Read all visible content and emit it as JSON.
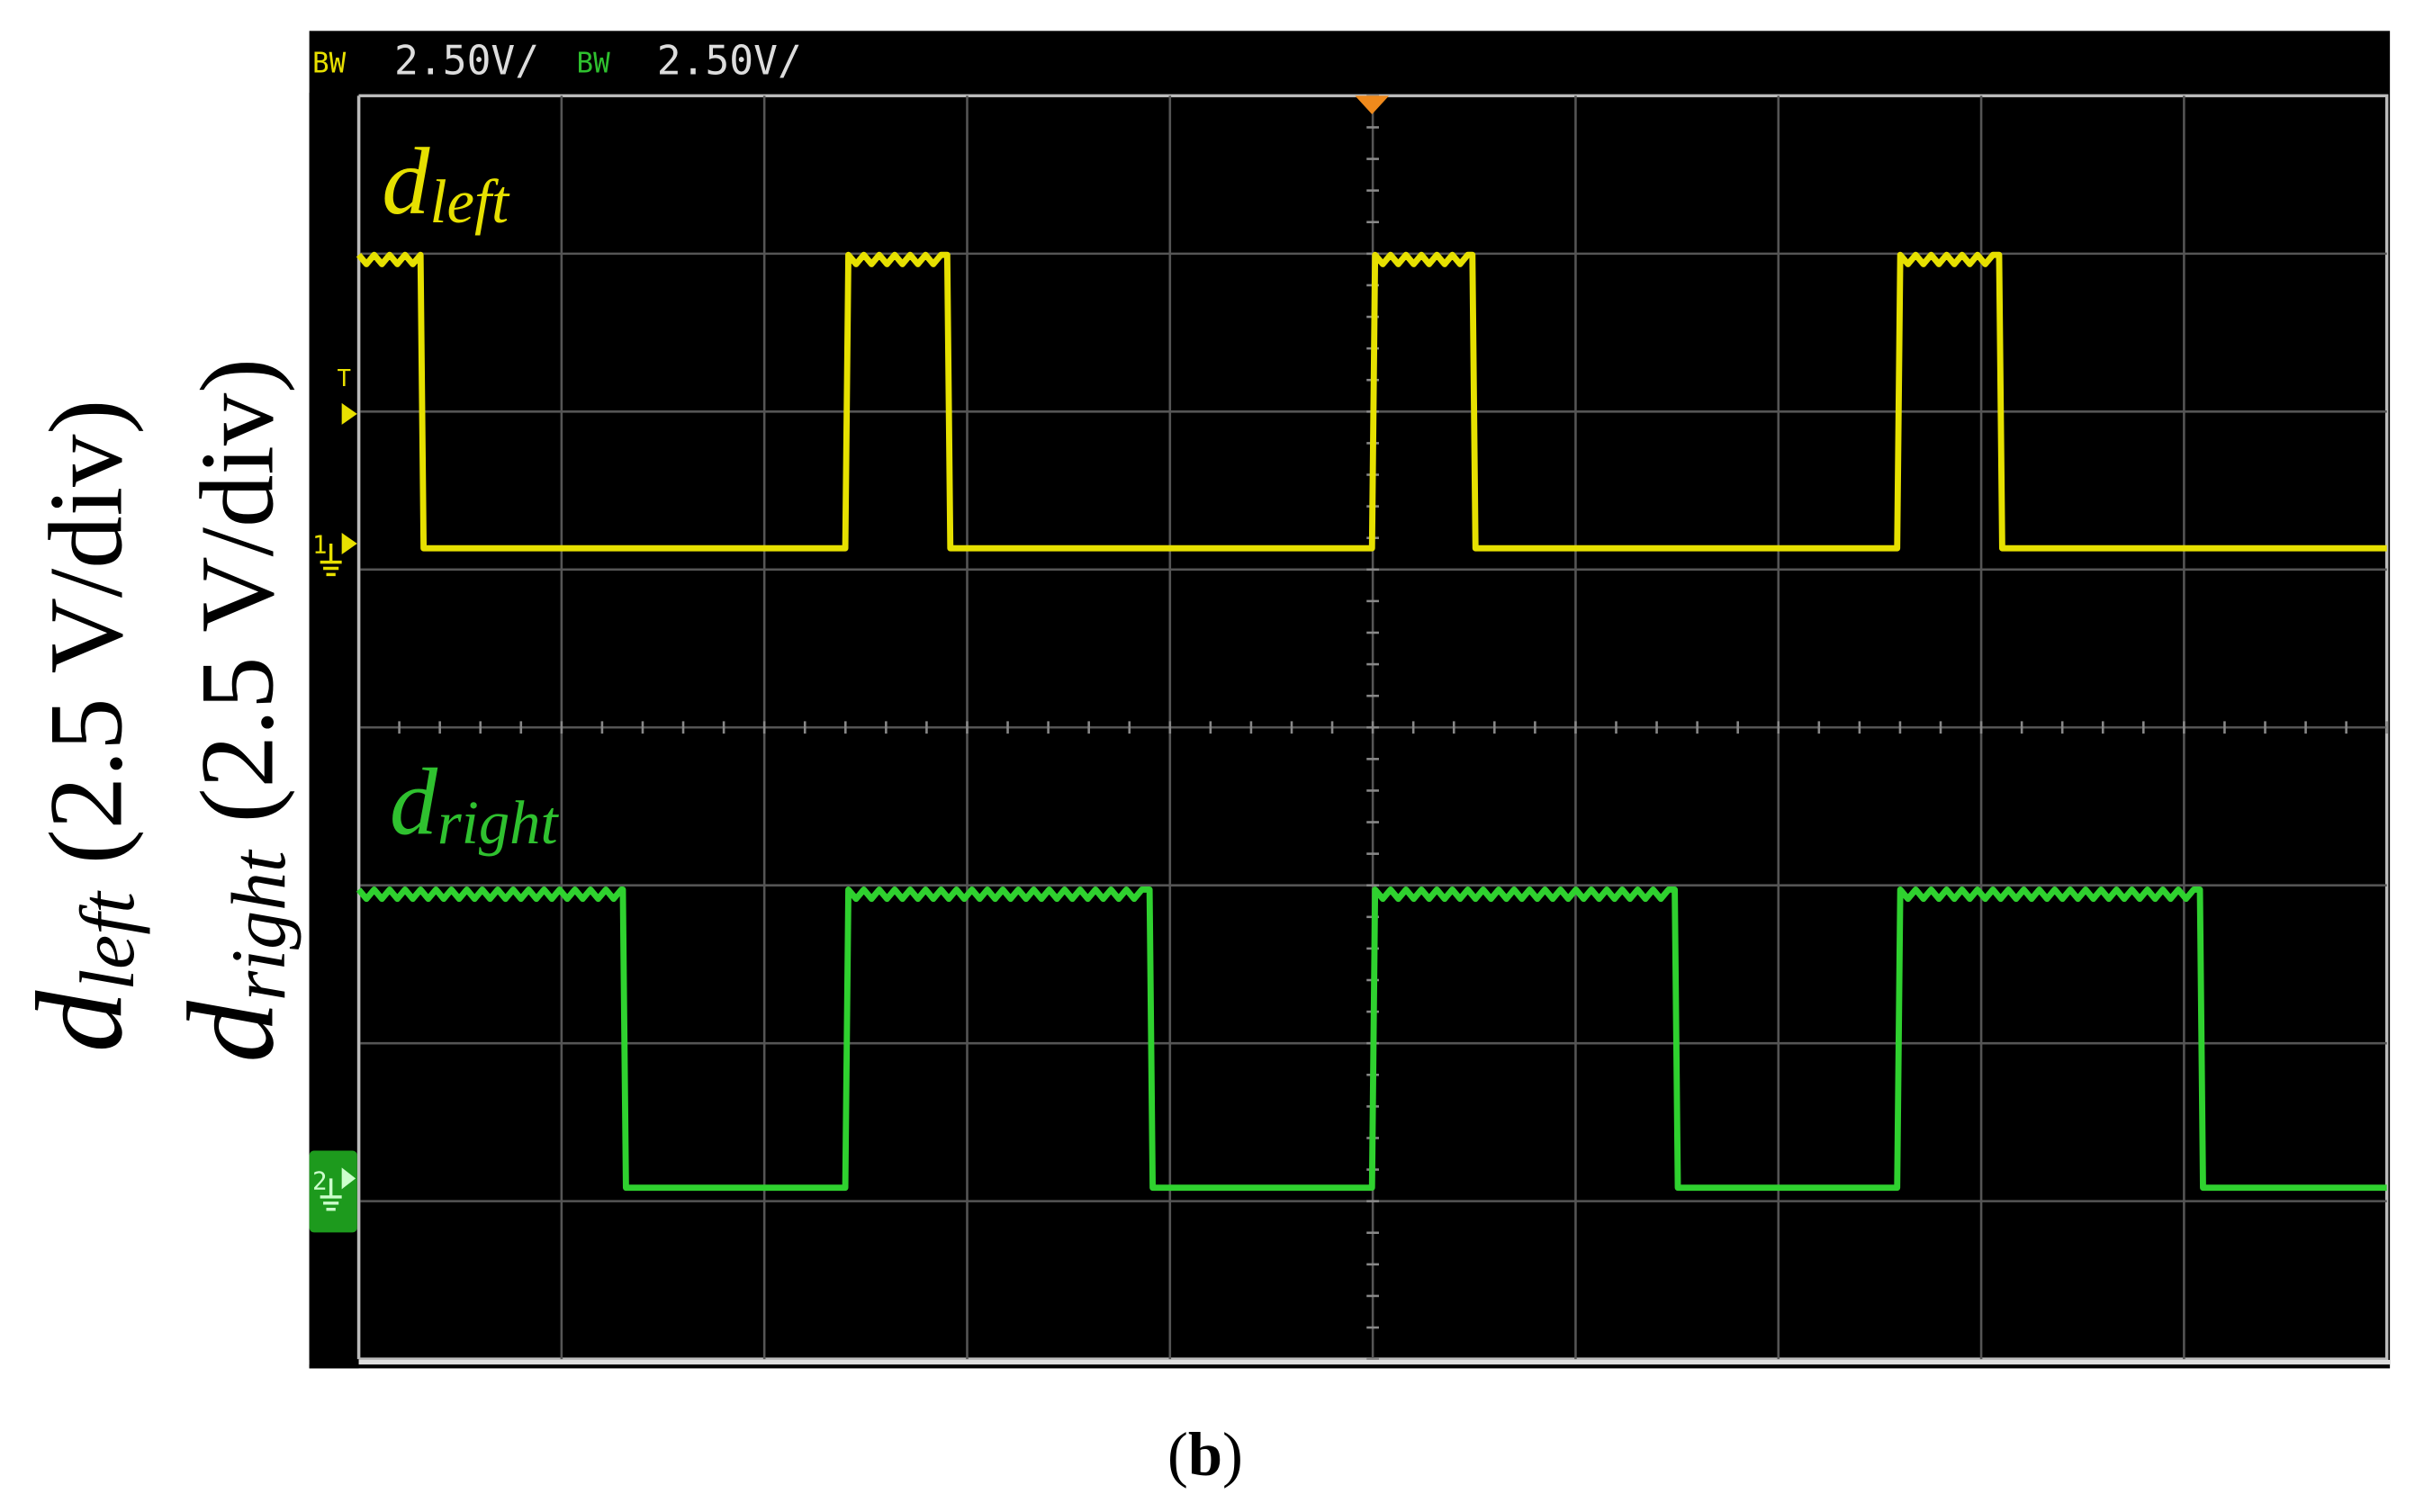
{
  "header": {
    "ch1_bw": "BW",
    "ch1_scale": "2.50V/",
    "ch2_bw": "BW",
    "ch2_scale": "2.50V/"
  },
  "markers": {
    "trigger": "T",
    "ch1": "1",
    "ch2": "2"
  },
  "traces": [
    {
      "symbol": "d",
      "subscript": "left"
    },
    {
      "symbol": "d",
      "subscript": "right"
    }
  ],
  "axis_labels": [
    {
      "symbol": "d",
      "subscript": "left",
      "unit": "(2.5 V/div)"
    },
    {
      "symbol": "d",
      "subscript": "right",
      "unit": "(2.5 V/div)"
    }
  ],
  "caption": {
    "open": "(",
    "letter": "b",
    "close": ")"
  }
}
